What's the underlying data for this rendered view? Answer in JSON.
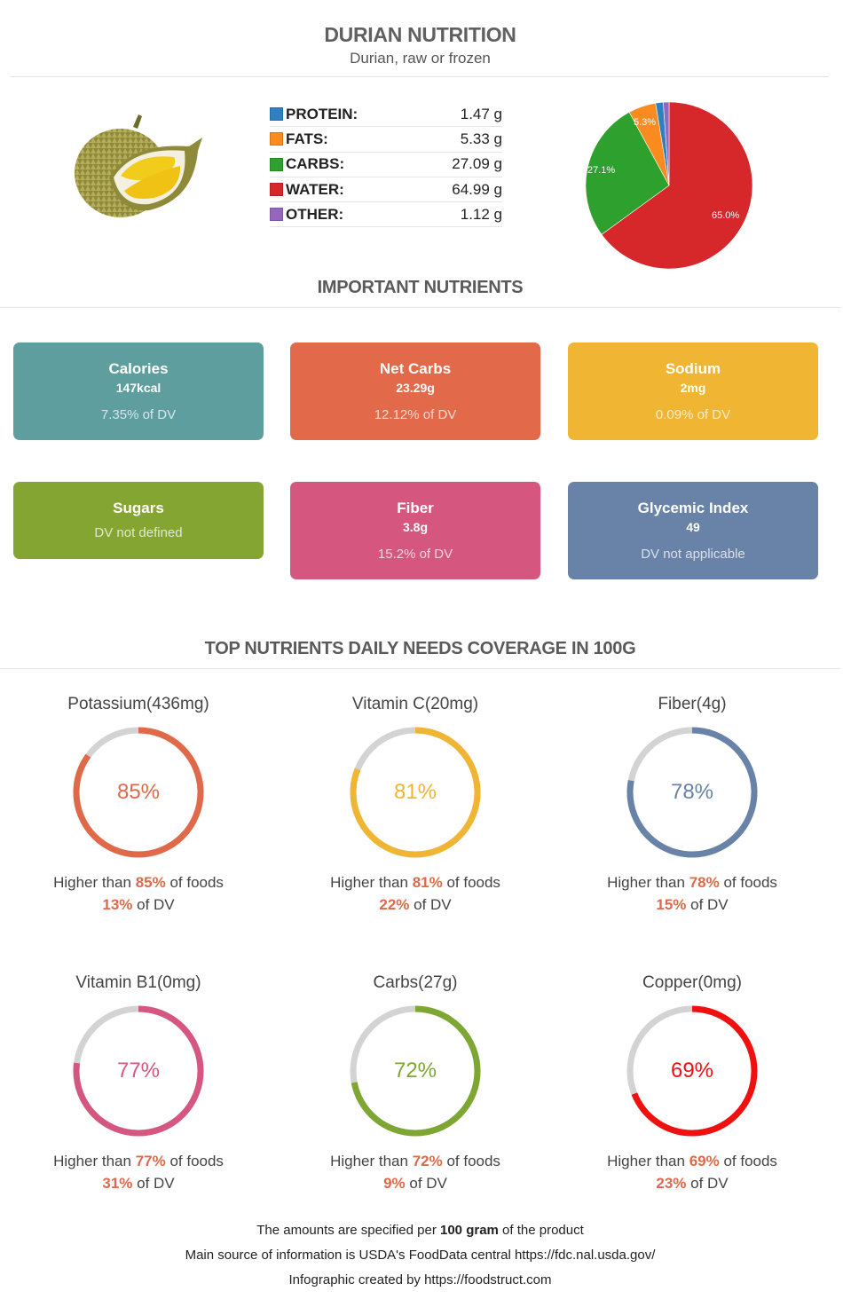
{
  "header": {
    "title": "DURIAN NUTRITION",
    "subtitle": "Durian, raw or frozen"
  },
  "macros": [
    {
      "label": "PROTEIN:",
      "value": "1.47 g",
      "color": "#2f7fc1"
    },
    {
      "label": "FATS:",
      "value": "5.33 g",
      "color": "#fb8a1f"
    },
    {
      "label": "CARBS:",
      "value": "27.09 g",
      "color": "#2ea02e"
    },
    {
      "label": "WATER:",
      "value": "64.99 g",
      "color": "#d6272a"
    },
    {
      "label": "OTHER:",
      "value": "1.12 g",
      "color": "#9467bd"
    }
  ],
  "chart_data": [
    {
      "type": "pie",
      "title": "",
      "categories": [
        "Protein",
        "Fats",
        "Carbs",
        "Water",
        "Other"
      ],
      "values": [
        1.47,
        5.33,
        27.09,
        64.99,
        1.12
      ],
      "colors": [
        "#2f7fc1",
        "#fb8a1f",
        "#2ea02e",
        "#d6272a",
        "#9467bd"
      ],
      "labels": [
        "",
        "5.3%",
        "27.1%",
        "65.0%",
        ""
      ]
    },
    {
      "type": "gauge",
      "title": "TOP NUTRIENTS DAILY NEEDS COVERAGE IN 100G",
      "categories": [
        "Potassium(436mg)",
        "Vitamin C(20mg)",
        "Fiber(4g)",
        "Vitamin B1(0mg)",
        "Carbs(27g)",
        "Copper(0mg)"
      ],
      "values": [
        85,
        81,
        78,
        77,
        72,
        69
      ],
      "dv_percent": [
        13,
        22,
        15,
        31,
        9,
        23
      ]
    }
  ],
  "pie_labels": {
    "fats": "5.3%",
    "carbs": "27.1%",
    "water": "65.0%"
  },
  "important": {
    "title": "IMPORTANT NUTRIENTS",
    "cards": [
      {
        "name": "Calories",
        "value": "147kcal",
        "dv": "7.35% of DV",
        "color": "#5f9e9e"
      },
      {
        "name": "Net Carbs",
        "value": "23.29g",
        "dv": "12.12% of DV",
        "color": "#e2694a"
      },
      {
        "name": "Sodium",
        "value": "2mg",
        "dv": "0.09% of DV",
        "color": "#f0b532"
      },
      {
        "name": "Sugars",
        "value": "",
        "dv": "DV not defined",
        "color": "#84a531"
      },
      {
        "name": "Fiber",
        "value": "3.8g",
        "dv": "15.2% of DV",
        "color": "#d55780"
      },
      {
        "name": "Glycemic Index",
        "value": "49",
        "dv": "DV not applicable",
        "color": "#6882a8"
      }
    ]
  },
  "coverage": {
    "title": "TOP NUTRIENTS DAILY NEEDS COVERAGE IN 100G",
    "prefix": "Higher than ",
    "suffix": " of foods",
    "dv_suffix": " of DV",
    "items": [
      {
        "name": "Potassium(436mg)",
        "pct": "85%",
        "pct_num": 85,
        "dv": "13%",
        "color": "#e0694a"
      },
      {
        "name": "Vitamin C(20mg)",
        "pct": "81%",
        "pct_num": 81,
        "dv": "22%",
        "color": "#f0b532"
      },
      {
        "name": "Fiber(4g)",
        "pct": "78%",
        "pct_num": 78,
        "dv": "15%",
        "color": "#6882a8"
      },
      {
        "name": "Vitamin B1(0mg)",
        "pct": "77%",
        "pct_num": 77,
        "dv": "31%",
        "color": "#d55780"
      },
      {
        "name": "Carbs(27g)",
        "pct": "72%",
        "pct_num": 72,
        "dv": "9%",
        "color": "#7ea632"
      },
      {
        "name": "Copper(0mg)",
        "pct": "69%",
        "pct_num": 69,
        "dv": "23%",
        "color": "#f01010"
      }
    ]
  },
  "footer": {
    "line1_pre": "The amounts are specified per ",
    "line1_bold": "100 gram",
    "line1_post": " of the product",
    "line2": "Main source of information is USDA's FoodData central https://fdc.nal.usda.gov/",
    "line3": "Infographic created by https://foodstruct.com"
  }
}
